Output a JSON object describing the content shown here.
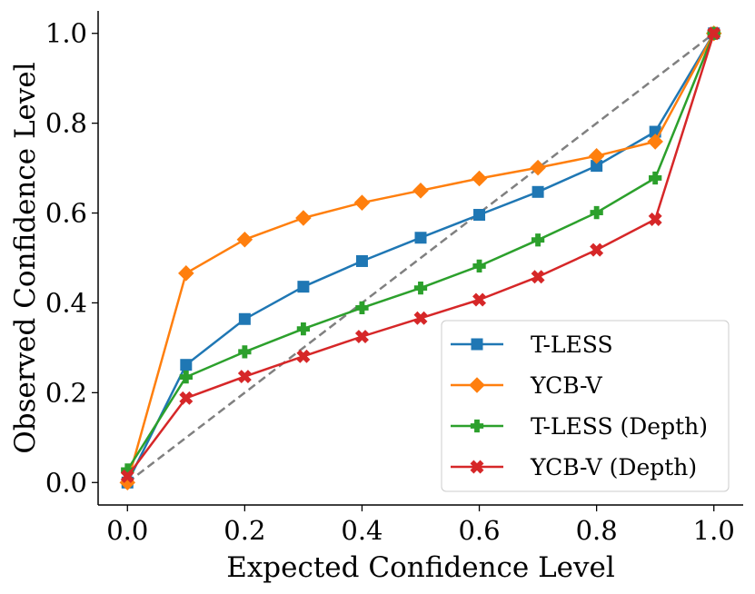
{
  "chart_data": {
    "type": "line",
    "title": "",
    "xlabel": "Expected Confidence Level",
    "ylabel": "Observed Confidence Level",
    "xlim": [
      -0.05,
      1.05
    ],
    "ylim": [
      -0.05,
      1.05
    ],
    "xticks": [
      0.0,
      0.2,
      0.4,
      0.6,
      0.8,
      1.0
    ],
    "yticks": [
      0.0,
      0.2,
      0.4,
      0.6,
      0.8,
      1.0
    ],
    "tick_labels_x": [
      "0.0",
      "0.2",
      "0.4",
      "0.6",
      "0.8",
      "1.0"
    ],
    "tick_labels_y": [
      "0.0",
      "0.2",
      "0.4",
      "0.6",
      "0.8",
      "1.0"
    ],
    "grid": false,
    "legend_position": "lower-right",
    "reference_line": {
      "style": "dashed",
      "color": "#808080",
      "x": [
        0,
        1
      ],
      "y": [
        0,
        1
      ]
    },
    "x": [
      0.0,
      0.1,
      0.2,
      0.3,
      0.4,
      0.5,
      0.6,
      0.7,
      0.8,
      0.9,
      1.0
    ],
    "series": [
      {
        "name": "T-LESS",
        "color": "#1f77b4",
        "marker": "square",
        "values": [
          0.0,
          0.262,
          0.364,
          0.436,
          0.493,
          0.545,
          0.596,
          0.647,
          0.705,
          0.781,
          1.0
        ]
      },
      {
        "name": "YCB-V",
        "color": "#ff7f0e",
        "marker": "diamond",
        "values": [
          0.0,
          0.466,
          0.541,
          0.589,
          0.623,
          0.65,
          0.677,
          0.701,
          0.727,
          0.759,
          1.0
        ]
      },
      {
        "name": "T-LESS (Depth)",
        "color": "#2ca02c",
        "marker": "plus",
        "values": [
          0.028,
          0.235,
          0.291,
          0.342,
          0.389,
          0.433,
          0.482,
          0.54,
          0.601,
          0.678,
          1.0
        ]
      },
      {
        "name": "YCB-V (Depth)",
        "color": "#d62728",
        "marker": "x",
        "values": [
          0.014,
          0.188,
          0.236,
          0.281,
          0.325,
          0.366,
          0.407,
          0.458,
          0.518,
          0.586,
          1.0
        ]
      }
    ]
  }
}
